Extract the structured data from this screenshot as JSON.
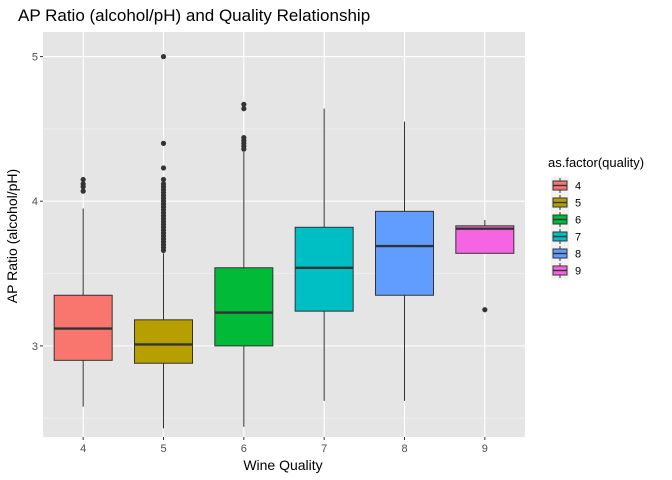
{
  "chart_data": {
    "type": "boxplot",
    "title": "AP Ratio (alcohol/pH) and  Quality Relationship",
    "xlabel": "Wine Quality",
    "ylabel": "AP Ratio (alcohol/pH)",
    "ylim": [
      2.37,
      5.17
    ],
    "y_ticks": [
      3,
      4,
      5
    ],
    "grid": true,
    "panel_background": "#e5e5e5",
    "legend": {
      "title": "as.factor(quality)",
      "position": "right"
    },
    "categories": [
      "4",
      "5",
      "6",
      "7",
      "8",
      "9"
    ],
    "series": [
      {
        "name": "4",
        "color": "#F8766D",
        "whisker_low": 2.58,
        "q1": 2.9,
        "median": 3.12,
        "q3": 3.35,
        "whisker_high": 3.95,
        "outliers": [
          4.07,
          4.1,
          4.12,
          4.15
        ]
      },
      {
        "name": "5",
        "color": "#B79F00",
        "whisker_low": 2.43,
        "q1": 2.88,
        "median": 3.01,
        "q3": 3.18,
        "whisker_high": 3.64,
        "outliers": [
          3.66,
          3.68,
          3.7,
          3.72,
          3.74,
          3.76,
          3.78,
          3.8,
          3.82,
          3.84,
          3.86,
          3.88,
          3.9,
          3.92,
          3.94,
          3.96,
          3.98,
          4.0,
          4.02,
          4.04,
          4.06,
          4.08,
          4.1,
          4.12,
          4.15,
          4.23,
          4.4,
          5.0
        ]
      },
      {
        "name": "6",
        "color": "#00BA38",
        "whisker_low": 2.44,
        "q1": 3.0,
        "median": 3.23,
        "q3": 3.54,
        "whisker_high": 4.34,
        "outliers": [
          4.36,
          4.38,
          4.4,
          4.42,
          4.44,
          4.64,
          4.67
        ]
      },
      {
        "name": "7",
        "color": "#00BFC4",
        "whisker_low": 2.62,
        "q1": 3.24,
        "median": 3.54,
        "q3": 3.82,
        "whisker_high": 4.64,
        "outliers": []
      },
      {
        "name": "8",
        "color": "#619CFF",
        "whisker_low": 2.62,
        "q1": 3.35,
        "median": 3.69,
        "q3": 3.93,
        "whisker_high": 4.55,
        "outliers": []
      },
      {
        "name": "9",
        "color": "#F564E3",
        "whisker_low": 3.64,
        "q1": 3.64,
        "median": 3.81,
        "q3": 3.83,
        "whisker_high": 3.87,
        "outliers": [
          3.25
        ]
      }
    ]
  }
}
